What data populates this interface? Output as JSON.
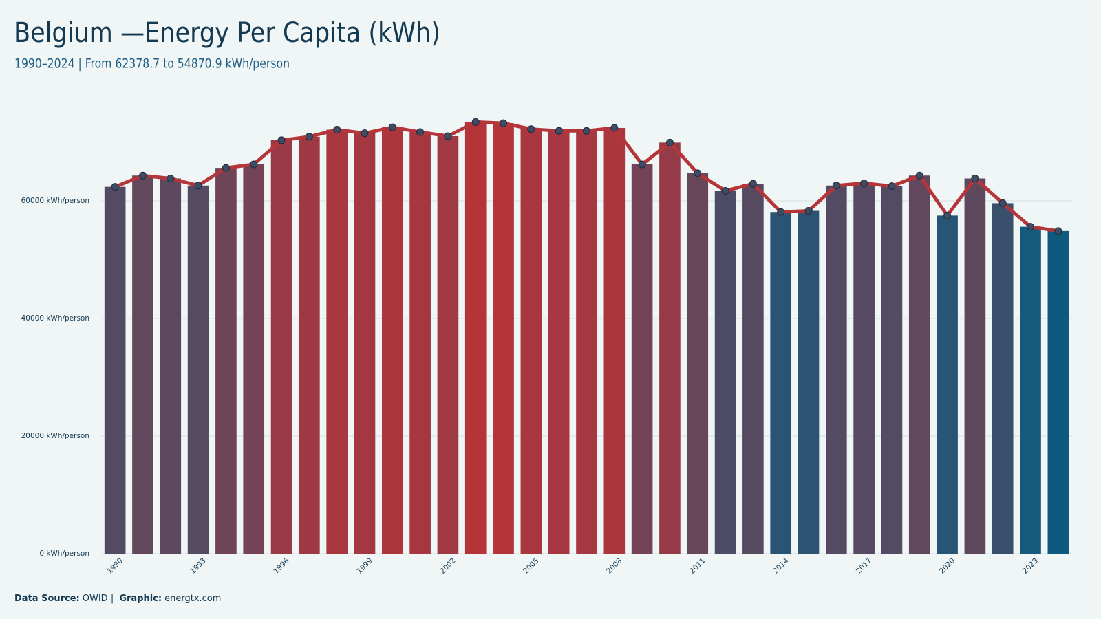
{
  "chart_data": {
    "type": "bar",
    "title": "Belgium —Energy Per Capita (kWh)",
    "subtitle": "1990–2024 | From 62378.7  to 54870.9  kWh/person",
    "footer": [
      {
        "text": "Data Source:",
        "bold": true
      },
      {
        "text": "OWID | ",
        "bold": false
      },
      {
        "text": "Graphic:",
        "bold": true
      },
      {
        "text": "energtx.com",
        "bold": false
      }
    ],
    "categories": [
      "1990",
      null,
      null,
      "1993",
      null,
      null,
      "1996",
      null,
      null,
      "1999",
      null,
      null,
      "2002",
      null,
      null,
      "2005",
      null,
      null,
      "2008",
      null,
      null,
      "2011",
      null,
      null,
      "2014",
      null,
      null,
      "2017",
      null,
      null,
      "2020",
      null,
      null,
      "2023",
      null
    ],
    "values": [
      62378.7,
      64300,
      63800,
      62600,
      65600,
      66200,
      70300,
      70900,
      72100,
      71500,
      72500,
      71700,
      71000,
      73400,
      73200,
      72200,
      71900,
      71900,
      72400,
      66200,
      69900,
      64700,
      61700,
      62900,
      58100,
      58300,
      62600,
      63000,
      62500,
      64300,
      57500,
      63800,
      59600,
      55600,
      54870.9
    ],
    "color_scale": [
      "#0e5a7f",
      "#b5343a"
    ],
    "line_color": "#b5363a",
    "marker_color": "#3d4d66",
    "ylim": [
      0,
      80000
    ],
    "yticks": [
      {
        "value": 0,
        "label": "0 kWh/person"
      },
      {
        "value": 20000,
        "label": "20000 kWh/person"
      },
      {
        "value": 40000,
        "label": "40000 kWh/person"
      },
      {
        "value": 60000,
        "label": "60000 kWh/person"
      }
    ],
    "grid": true
  }
}
